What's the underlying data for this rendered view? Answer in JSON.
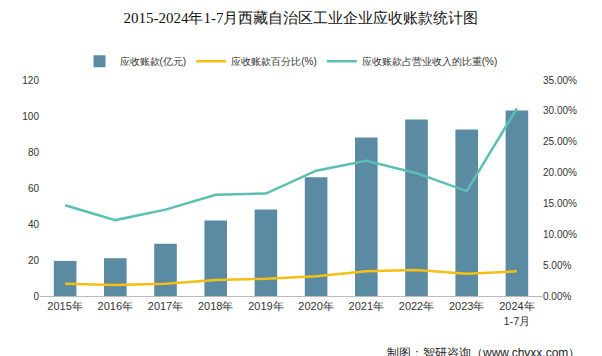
{
  "chart_data": {
    "type": "bar",
    "title": "2015-2024年1-7月西藏自治区工业企业应收账款统计图",
    "source": "制图：智研咨询（www.chyxx.com）",
    "categories": [
      "2015年",
      "2016年",
      "2017年",
      "2018年",
      "2019年",
      "2020年",
      "2021年",
      "2022年",
      "2023年",
      "2024年\n1-7月"
    ],
    "series": [
      {
        "name": "应收账款(亿元)",
        "type": "bar",
        "color": "#5b8ba3",
        "values": [
          19.5,
          21,
          29,
          42,
          48,
          66,
          88,
          98,
          92.5,
          103
        ]
      },
      {
        "name": "应收账款百分比(%)",
        "type": "line",
        "axis": "y2",
        "color": "#f5c012",
        "values": [
          2.0,
          1.8,
          2.0,
          2.6,
          2.8,
          3.2,
          4.0,
          4.2,
          3.6,
          4.0
        ]
      },
      {
        "name": "应收账款占营业收入的比重(%)",
        "type": "line",
        "axis": "y2",
        "color": "#5cbfb4",
        "values": [
          14.7,
          12.3,
          14.0,
          16.4,
          16.6,
          20.3,
          21.9,
          19.9,
          17.0,
          30.4
        ]
      }
    ],
    "ylim": [
      0,
      120
    ],
    "yticks": [
      0,
      20,
      40,
      60,
      80,
      100,
      120
    ],
    "y2lim": [
      0,
      35
    ],
    "y2ticks": [
      {
        "value": 0,
        "label": "0.00%"
      },
      {
        "value": 5,
        "label": "5.00%"
      },
      {
        "value": 10,
        "label": "10.00%"
      },
      {
        "value": 15,
        "label": "15.00%"
      },
      {
        "value": 20,
        "label": "20.00%"
      },
      {
        "value": 25,
        "label": "25.00%"
      },
      {
        "value": 30,
        "label": "30.00%"
      },
      {
        "value": 35,
        "label": "35.00%"
      }
    ],
    "grid": false,
    "legend": "top"
  }
}
